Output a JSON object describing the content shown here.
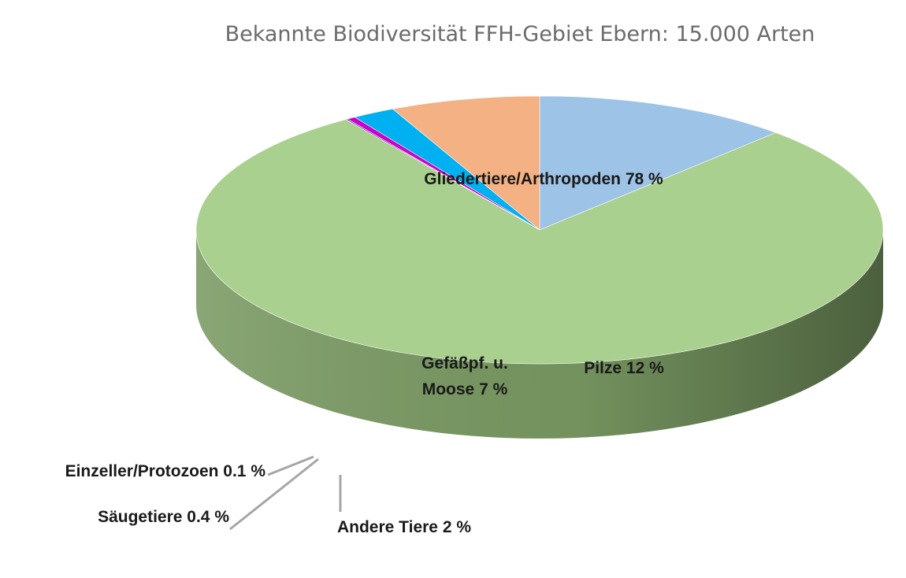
{
  "chart_data": {
    "type": "pie",
    "style": "3d",
    "title": "Bekannte Biodiversität FFH-Gebiet Ebern: 15.000 Arten",
    "slices": [
      {
        "name": "Pilze",
        "value": 12,
        "label_lines": [
          "Pilze 12 %"
        ],
        "color": "#9dc3e6",
        "side_color": "#4a5a70"
      },
      {
        "name": "Gliedertiere/Arthropoden",
        "value": 78,
        "label_lines": [
          "Gliedertiere/Arthropoden 78 %"
        ],
        "color": "#a9d08e",
        "side_color": "#7a9a63"
      },
      {
        "name": "Einzeller/Protozoen",
        "value": 0.1,
        "label_lines": [
          "Einzeller/Protozoen 0.1 %"
        ],
        "color": "#7030a0",
        "side_color": "#4a1f6b"
      },
      {
        "name": "Säugetiere",
        "value": 0.4,
        "label_lines": [
          "Säugetiere 0.4 %"
        ],
        "color": "#cc00cc",
        "side_color": "#8c008c"
      },
      {
        "name": "Andere Tiere",
        "value": 2,
        "label_lines": [
          "Andere Tiere 2 %"
        ],
        "color": "#00b0f0",
        "side_color": "#007aa8"
      },
      {
        "name": "Gefäßpflanzen und Moose",
        "value": 7,
        "label_lines": [
          "Gefäßpf. u.",
          "Moose 7 %"
        ],
        "color": "#f4b183",
        "side_color": "#a66f48"
      }
    ]
  }
}
